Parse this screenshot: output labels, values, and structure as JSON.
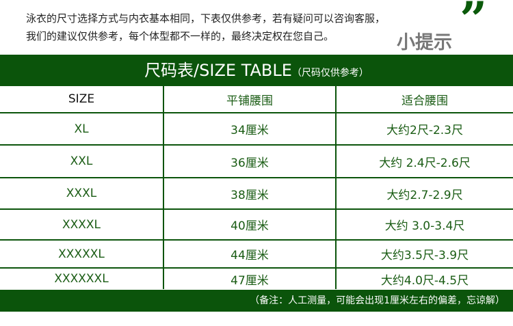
{
  "intro": {
    "line1": "泳衣的尺寸选择方式与内衣基本相同，下表仅供参考，若有疑问可以咨询客服，",
    "line2": "我们的建议仅供参考，每个体型都不一样的，最终决定权在您自己。",
    "tip": "小提示",
    "quote_mark": "❞"
  },
  "title": {
    "main": "尺码表/SIZE TABLE",
    "sub": "（尺码仅供参考）"
  },
  "headers": [
    "SIZE",
    "平铺腰围",
    "适合腰围"
  ],
  "rows": [
    [
      "XL",
      "34厘米",
      "大约2尺-2.3尺"
    ],
    [
      "XXL",
      "36厘米",
      "大约 2.4尺-2.6尺"
    ],
    [
      "XXXL",
      "38厘米",
      "大约2.7-2.9尺"
    ],
    [
      "XXXXL",
      "40厘米",
      "大约 3.0-3.4尺"
    ],
    [
      "XXXXXL",
      "44厘米",
      "大约3.5尺-3.9尺"
    ],
    [
      "XXXXXXL",
      "47厘米",
      "大约4.0尺-4.5尺"
    ]
  ],
  "footer": "（备注：人工测量，可能会出现1厘米左右的偏差，忘谅解）",
  "colors": {
    "brand_green": "#0b540b",
    "text_green": "#1a5c14"
  }
}
